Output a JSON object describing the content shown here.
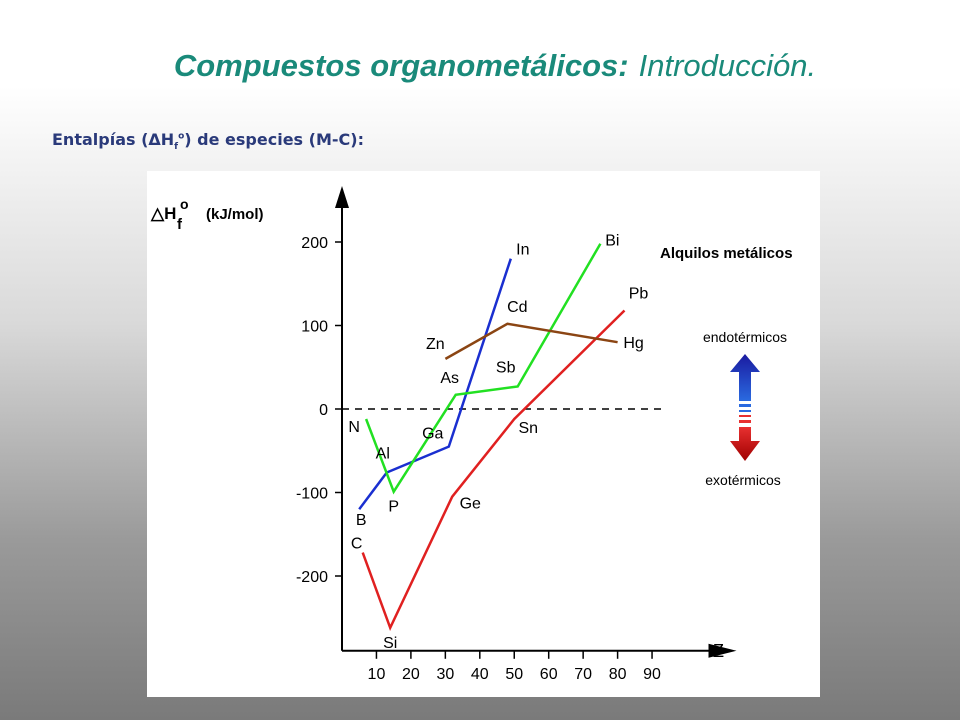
{
  "slide": {
    "title_bold": "Compuestos organometálicos:",
    "title_light": "Introducción",
    "title_dot": ".",
    "subtitle_pre": "Entalpías (ΔH",
    "subtitle_sub": "f",
    "subtitle_sup": "o",
    "subtitle_post": ")  de especies (M-C):"
  },
  "chart_data": {
    "type": "line",
    "ylabel_main": "△H",
    "ylabel_sub": "f",
    "ylabel_sup": "o",
    "ylabel_unit": "(kJ/mol)",
    "xlabel": "Z",
    "xlim": [
      0,
      100
    ],
    "ylim": [
      -280,
      250
    ],
    "xticks": [
      10,
      20,
      30,
      40,
      50,
      60,
      70,
      80,
      90
    ],
    "yticks": [
      200,
      100,
      0,
      -100,
      -200
    ],
    "zero_line": true,
    "legend_title": "Alquilos metálicos",
    "arrow_up_label": "endotérmicos",
    "arrow_down_label": "exotérmicos",
    "series": [
      {
        "color": "#1a2fd0",
        "points": [
          {
            "label": "B",
            "x": 5,
            "y": -120
          },
          {
            "label": "Al",
            "x": 13,
            "y": -76
          },
          {
            "label": "Ga",
            "x": 31,
            "y": -45
          },
          {
            "label": "In",
            "x": 49,
            "y": 180
          }
        ]
      },
      {
        "color": "#22e022",
        "points": [
          {
            "label": "N",
            "x": 7,
            "y": -12
          },
          {
            "label": "P",
            "x": 15,
            "y": -99
          },
          {
            "label": "As",
            "x": 33,
            "y": 17
          },
          {
            "label": "Sb",
            "x": 51,
            "y": 27
          },
          {
            "label": "Bi",
            "x": 75,
            "y": 198
          }
        ]
      },
      {
        "color": "#e02020",
        "points": [
          {
            "label": "C",
            "x": 6,
            "y": -172
          },
          {
            "label": "Si",
            "x": 14,
            "y": -262
          },
          {
            "label": "Ge",
            "x": 32,
            "y": -105
          },
          {
            "label": "Sn",
            "x": 50,
            "y": -12
          },
          {
            "label": "Pb",
            "x": 82,
            "y": 118
          }
        ]
      },
      {
        "color": "#8b4513",
        "points": [
          {
            "label": "Zn",
            "x": 30,
            "y": 60
          },
          {
            "label": "Cd",
            "x": 48,
            "y": 102
          },
          {
            "label": "Hg",
            "x": 80,
            "y": 80
          }
        ]
      }
    ]
  }
}
